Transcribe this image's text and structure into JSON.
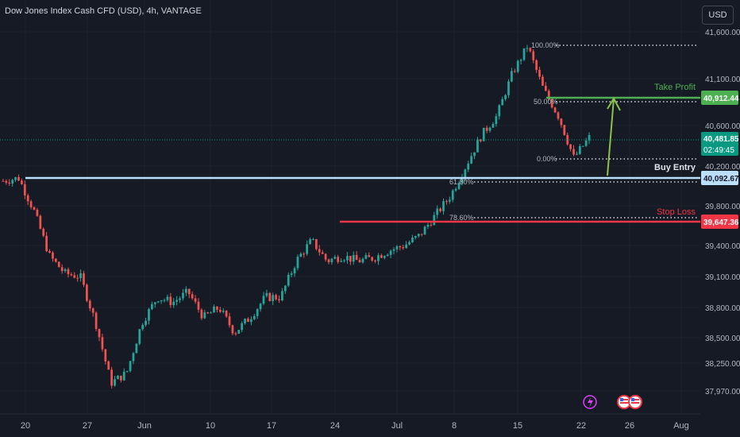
{
  "header": {
    "title": "Dow Jones Index Cash CFD (USD), 4h, VANTAGE",
    "currency_button": "USD"
  },
  "price_axis": {
    "ticks": [
      "41,600.00",
      "41,100.00",
      "40,600.00",
      "40,200.00",
      "39,800.00",
      "39,400.00",
      "39,100.00",
      "38,800.00",
      "38,500.00",
      "38,250.00",
      "37,970.00"
    ]
  },
  "time_axis": {
    "ticks": [
      "20",
      "27",
      "Jun",
      "10",
      "17",
      "24",
      "Jul",
      "8",
      "15",
      "22",
      "26",
      "Aug"
    ]
  },
  "labels": {
    "take_profit_text": "Take Profit",
    "take_profit_price": "40,912.44",
    "buy_entry_text": "Buy Entry",
    "buy_entry_price": "40,092.67",
    "stop_loss_text": "Stop Loss",
    "stop_loss_price": "39,647.36",
    "current_price": "40,481.85",
    "countdown": "02:49:45"
  },
  "fibonacci": {
    "levels": [
      "100.00%",
      "50.00%",
      "0.00%",
      "61.80%",
      "78.60%"
    ]
  },
  "colors": {
    "background": "#161a25",
    "up": "#26a69a",
    "down": "#ef5350",
    "take_profit": "#4caf50",
    "buy_entry": "#bbdefb",
    "stop_loss": "#f23645",
    "current": "#089981",
    "arrow": "#8bc34a"
  },
  "chart_data": {
    "type": "candlestick",
    "title": "Dow Jones Index Cash CFD (USD), 4h, VANTAGE",
    "timeframe": "4h",
    "x_range": [
      "May 20",
      "Aug"
    ],
    "ylim": [
      37850,
      41700
    ],
    "close_path": [
      [
        "May 17",
        40050
      ],
      [
        "May 20",
        40080
      ],
      [
        "May 22",
        39750
      ],
      [
        "May 24",
        39300
      ],
      [
        "May 26",
        39130
      ],
      [
        "May 28",
        39100
      ],
      [
        "May 30",
        38650
      ],
      [
        "May 31",
        38050
      ],
      [
        "Jun 3",
        38150
      ],
      [
        "Jun 4",
        38650
      ],
      [
        "Jun 6",
        38900
      ],
      [
        "Jun 9",
        38850
      ],
      [
        "Jun 11",
        38950
      ],
      [
        "Jun 13",
        38700
      ],
      [
        "Jun 15",
        38800
      ],
      [
        "Jun 17",
        38550
      ],
      [
        "Jun 19",
        38700
      ],
      [
        "Jun 21",
        38900
      ],
      [
        "Jun 23",
        38900
      ],
      [
        "Jun 25",
        39250
      ],
      [
        "Jun 26",
        39450
      ],
      [
        "Jun 27",
        39250
      ],
      [
        "Jun 29",
        39300
      ],
      [
        "Jul 1",
        39250
      ],
      [
        "Jul 3",
        39280
      ],
      [
        "Jul 5",
        39350
      ],
      [
        "Jul 8",
        39400
      ],
      [
        "Jul 10",
        39500
      ],
      [
        "Jul 11",
        39700
      ],
      [
        "Jul 13",
        39900
      ],
      [
        "Jul 15",
        40200
      ],
      [
        "Jul 16",
        40500
      ],
      [
        "Jul 17",
        40700
      ],
      [
        "Jul 18",
        41150
      ],
      [
        "Jul 19",
        41450
      ],
      [
        "Jul 19b",
        41000
      ],
      [
        "Jul 20",
        40700
      ],
      [
        "Jul 21",
        40280
      ],
      [
        "Jul 22",
        40480
      ]
    ],
    "annotations": [
      {
        "label": "Take Profit",
        "y": 40912.44
      },
      {
        "label": "Buy Entry",
        "y": 40092.67
      },
      {
        "label": "Stop Loss",
        "y": 39647.36
      },
      {
        "label": "Current price",
        "y": 40481.85
      }
    ],
    "fibonacci": [
      {
        "level": "100.00%",
        "y": 41450
      },
      {
        "level": "50.00%",
        "y": 40880
      },
      {
        "level": "0.00%",
        "y": 40250
      },
      {
        "level": "61.80%",
        "y": 40050
      },
      {
        "level": "78.60%",
        "y": 39700
      }
    ]
  }
}
